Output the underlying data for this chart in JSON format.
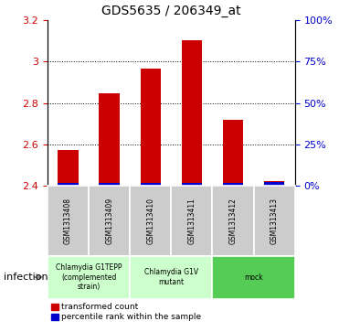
{
  "title": "GDS5635 / 206349_at",
  "samples": [
    "GSM1313408",
    "GSM1313409",
    "GSM1313410",
    "GSM1313411",
    "GSM1313412",
    "GSM1313413"
  ],
  "red_values": [
    2.575,
    2.845,
    2.965,
    3.1,
    2.72,
    2.425
  ],
  "blue_values": [
    2.415,
    2.415,
    2.415,
    2.415,
    2.415,
    2.42
  ],
  "ymin": 2.4,
  "ymax": 3.2,
  "yticks_left": [
    2.4,
    2.6,
    2.8,
    3.0,
    3.2
  ],
  "ytick_labels_left": [
    "2.4",
    "2.6",
    "2.8",
    "3",
    "3.2"
  ],
  "yticks_right_pct": [
    0,
    25,
    50,
    75,
    100
  ],
  "ytick_labels_right": [
    "0%",
    "25%",
    "50%",
    "75%",
    "100%"
  ],
  "grid_values": [
    2.6,
    2.8,
    3.0
  ],
  "group_spans": [
    {
      "start": 0,
      "end": 1,
      "label": "Chlamydia G1TEPP\n(complemented\nstrain)",
      "color": "#ccffcc"
    },
    {
      "start": 2,
      "end": 3,
      "label": "Chlamydia G1V\nmutant",
      "color": "#ccffcc"
    },
    {
      "start": 4,
      "end": 5,
      "label": "mock",
      "color": "#55cc55"
    }
  ],
  "infection_label": "infection",
  "legend_red": "transformed count",
  "legend_blue": "percentile rank within the sample",
  "bar_width": 0.5,
  "red_color": "#cc0000",
  "blue_color": "#0000cc",
  "tick_color_left": "#cc0000",
  "tick_color_right": "#0000cc",
  "sample_bg_color": "#cccccc",
  "fig_width": 3.71,
  "fig_height": 3.63,
  "dpi": 100
}
